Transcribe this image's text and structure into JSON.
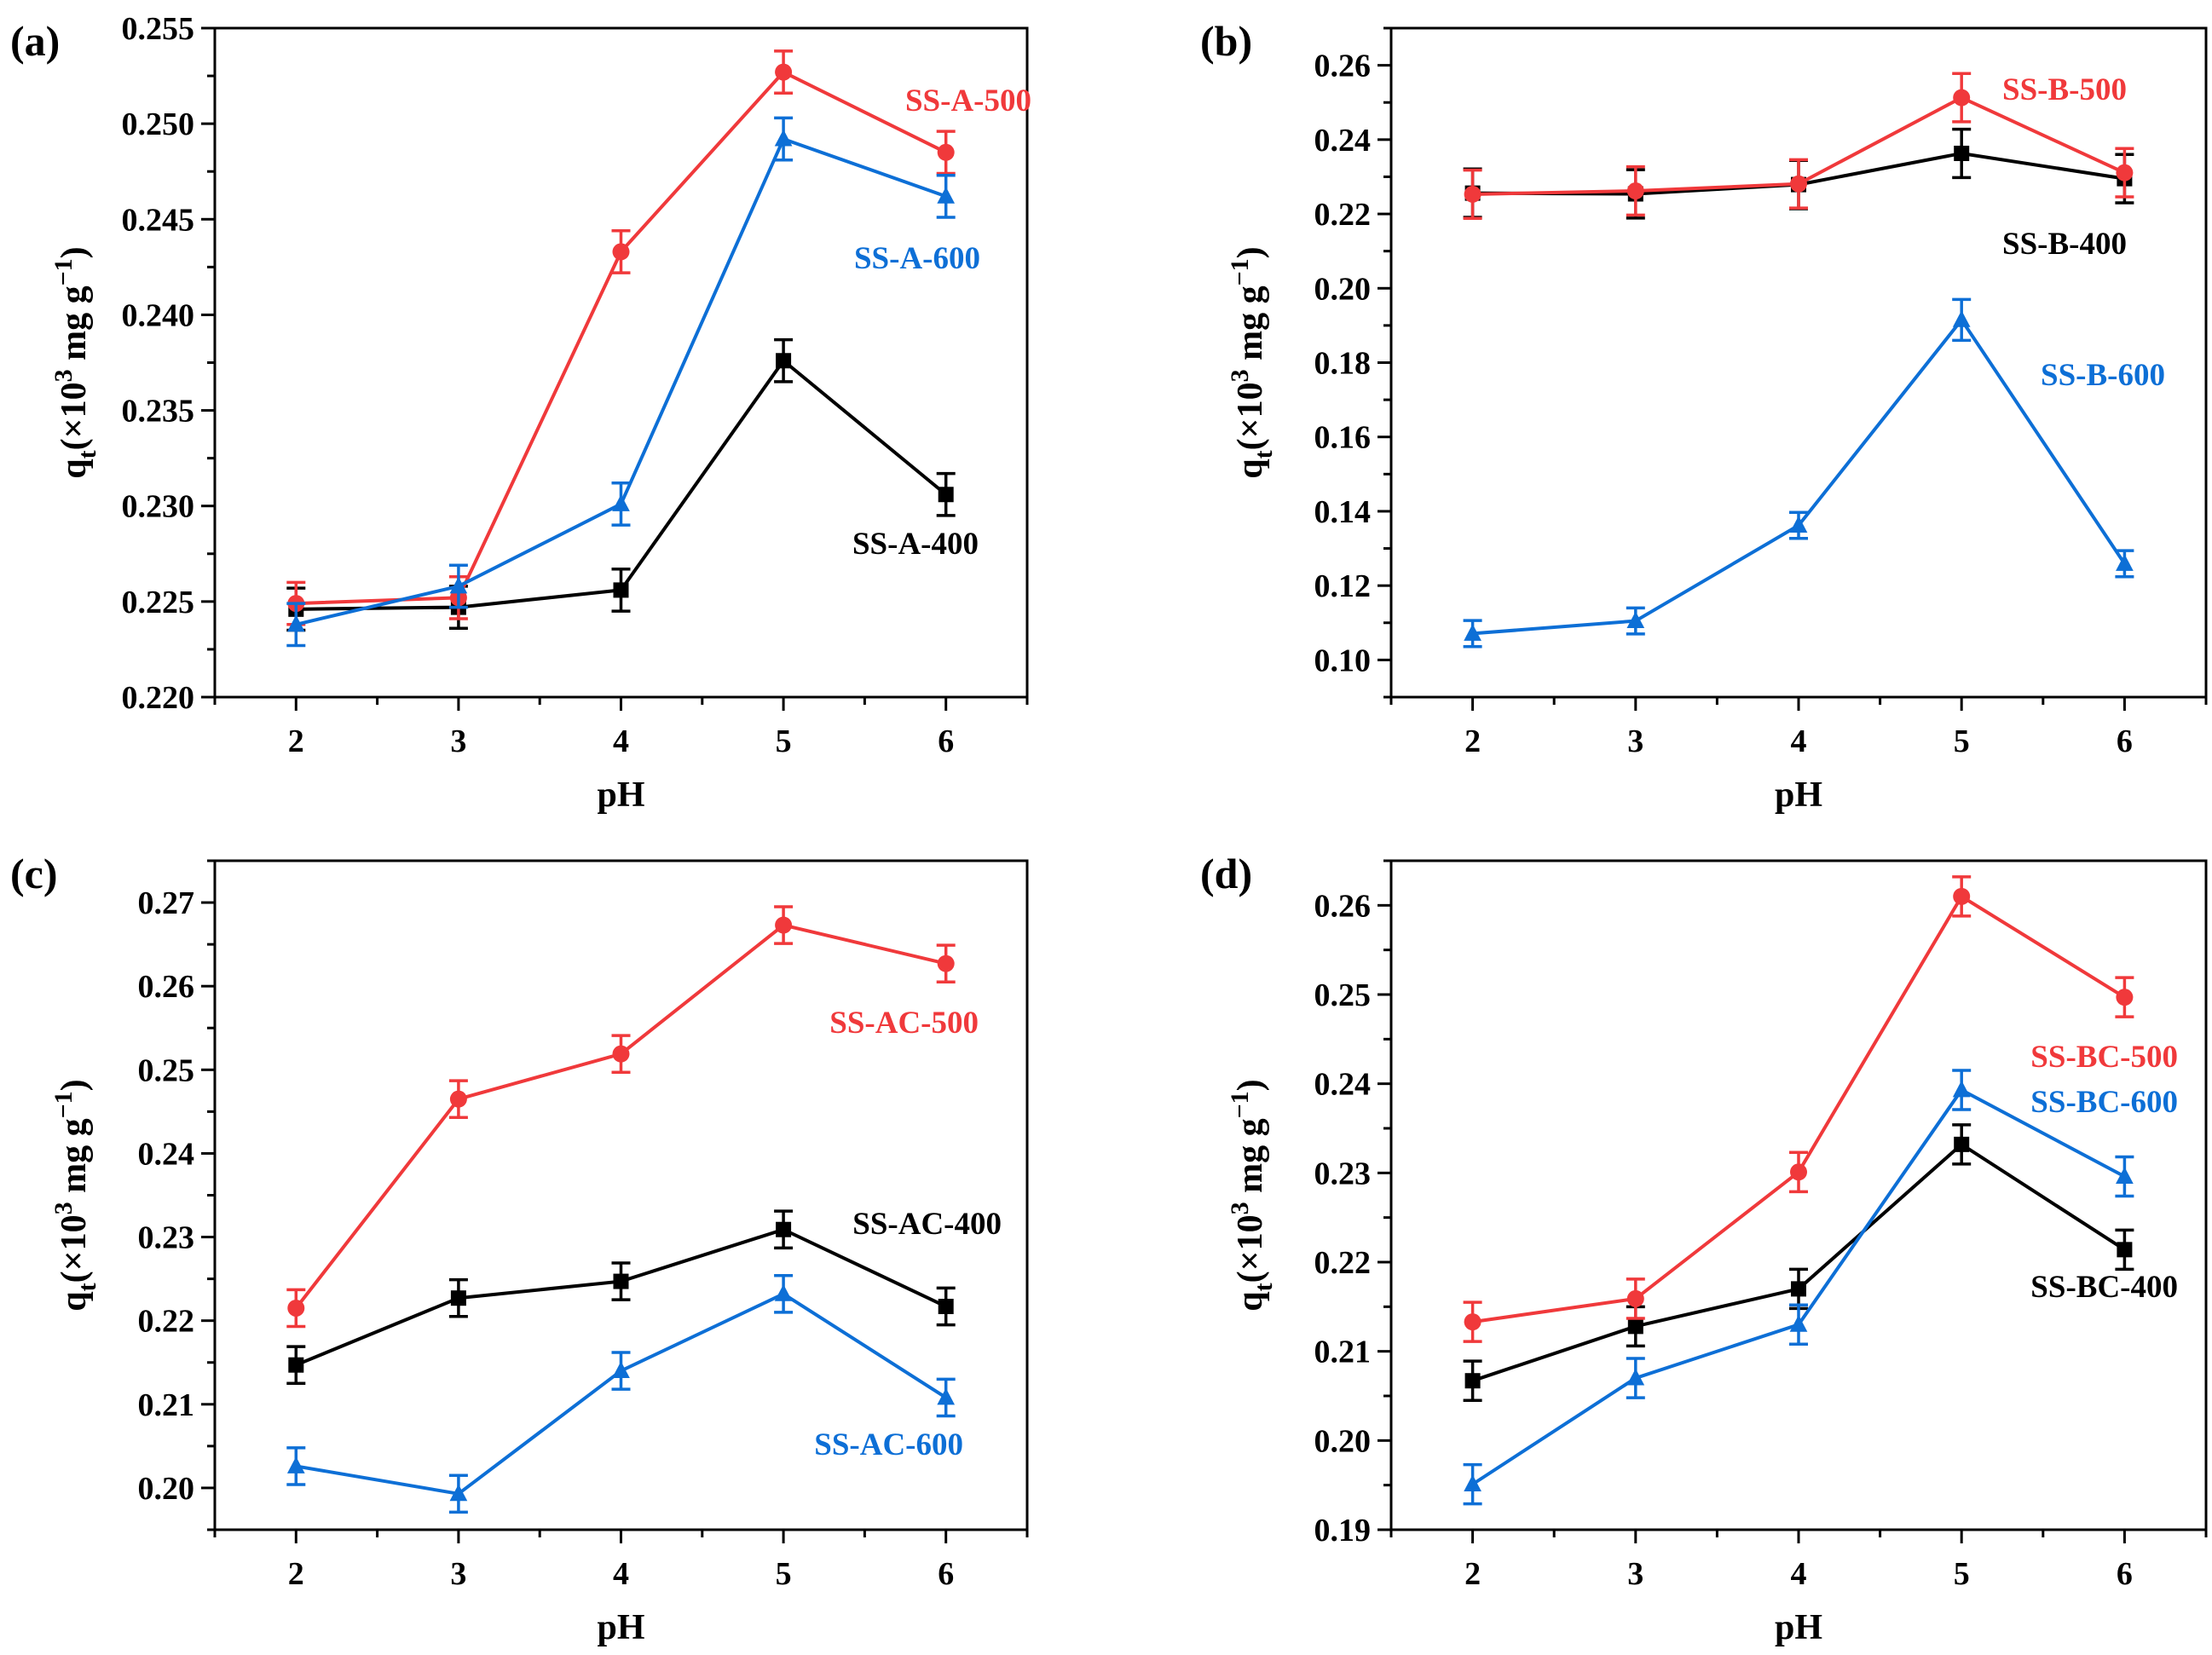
{
  "figure": {
    "panels": [
      {
        "label": "(a)"
      },
      {
        "label": "(b)"
      },
      {
        "label": "(c)"
      },
      {
        "label": "(d)"
      }
    ]
  },
  "chart_data": [
    {
      "type": "line",
      "panel": "(a)",
      "xlabel": "pH",
      "ylabel": "q_t(×10^3 mg g^-1)",
      "x": [
        2,
        3,
        4,
        5,
        6
      ],
      "xticks": [
        "2",
        "3",
        "4",
        "5",
        "6"
      ],
      "xlim": [
        1.5,
        6.5
      ],
      "ylim": [
        0.22,
        0.255
      ],
      "yticks": [
        "0.220",
        "0.225",
        "0.230",
        "0.235",
        "0.240",
        "0.245",
        "0.250",
        "0.255"
      ],
      "series": [
        {
          "name": "SS-A-400",
          "color": "#000000",
          "marker": "square",
          "values": [
            0.2246,
            0.2247,
            0.2256,
            0.2376,
            0.2306
          ],
          "error": [
            0.0011,
            0.0011,
            0.0011,
            0.0011,
            0.0011
          ]
        },
        {
          "name": "SS-A-500",
          "color": "#f0393b",
          "marker": "circle",
          "values": [
            0.2249,
            0.2252,
            0.2433,
            0.2527,
            0.2485
          ],
          "error": [
            0.0011,
            0.0011,
            0.0011,
            0.0011,
            0.0011
          ]
        },
        {
          "name": "SS-A-600",
          "color": "#0d6fd6",
          "marker": "triangle",
          "values": [
            0.2238,
            0.2258,
            0.2301,
            0.2492,
            0.2462
          ],
          "error": [
            0.0011,
            0.0011,
            0.0011,
            0.0011,
            0.0011
          ]
        }
      ]
    },
    {
      "type": "line",
      "panel": "(b)",
      "xlabel": "pH",
      "ylabel": "q_t(×10^3 mg g^-1)",
      "x": [
        2,
        3,
        4,
        5,
        6
      ],
      "xticks": [
        "2",
        "3",
        "4",
        "5",
        "6"
      ],
      "xlim": [
        1.5,
        6.5
      ],
      "ylim": [
        0.09,
        0.27
      ],
      "yticks": [
        "0.10",
        "0.12",
        "0.14",
        "0.16",
        "0.18",
        "0.20",
        "0.22",
        "0.24",
        "0.26"
      ],
      "series": [
        {
          "name": "SS-B-400",
          "color": "#000000",
          "marker": "square",
          "values": [
            0.2256,
            0.2254,
            0.2279,
            0.2363,
            0.2295
          ],
          "error": [
            0.0065,
            0.0065,
            0.0065,
            0.0065,
            0.0065
          ]
        },
        {
          "name": "SS-B-500",
          "color": "#f0393b",
          "marker": "circle",
          "values": [
            0.2253,
            0.2262,
            0.2281,
            0.2513,
            0.2311
          ],
          "error": [
            0.0065,
            0.0065,
            0.0065,
            0.0065,
            0.0065
          ]
        },
        {
          "name": "SS-B-600",
          "color": "#0d6fd6",
          "marker": "triangle",
          "values": [
            0.1071,
            0.1105,
            0.1362,
            0.1915,
            0.1259
          ],
          "error": [
            0.0035,
            0.0035,
            0.0035,
            0.0055,
            0.0035
          ]
        }
      ]
    },
    {
      "type": "line",
      "panel": "(c)",
      "xlabel": "pH",
      "ylabel": "q_t(×10^3 mg g^-1)",
      "x": [
        2,
        3,
        4,
        5,
        6
      ],
      "xticks": [
        "2",
        "3",
        "4",
        "5",
        "6"
      ],
      "xlim": [
        1.5,
        6.5
      ],
      "ylim": [
        0.195,
        0.275
      ],
      "yticks": [
        "0.20",
        "0.21",
        "0.22",
        "0.23",
        "0.24",
        "0.25",
        "0.26",
        "0.27"
      ],
      "series": [
        {
          "name": "SS-AC-400",
          "color": "#000000",
          "marker": "square",
          "values": [
            0.2147,
            0.2227,
            0.2247,
            0.2309,
            0.2217
          ],
          "error": [
            0.0022,
            0.0022,
            0.0022,
            0.0022,
            0.0022
          ]
        },
        {
          "name": "SS-AC-500",
          "color": "#f0393b",
          "marker": "circle",
          "values": [
            0.2215,
            0.2465,
            0.2519,
            0.2673,
            0.2627
          ],
          "error": [
            0.0022,
            0.0022,
            0.0022,
            0.0022,
            0.0022
          ]
        },
        {
          "name": "SS-AC-600",
          "color": "#0d6fd6",
          "marker": "triangle",
          "values": [
            0.2026,
            0.1993,
            0.214,
            0.2232,
            0.2108
          ],
          "error": [
            0.0022,
            0.0022,
            0.0022,
            0.0022,
            0.0022
          ]
        }
      ]
    },
    {
      "type": "line",
      "panel": "(d)",
      "xlabel": "pH",
      "ylabel": "q_t(×10^3 mg g^-1)",
      "x": [
        2,
        3,
        4,
        5,
        6
      ],
      "xticks": [
        "2",
        "3",
        "4",
        "5",
        "6"
      ],
      "xlim": [
        1.5,
        6.5
      ],
      "ylim": [
        0.19,
        0.265
      ],
      "yticks": [
        "0.19",
        "0.20",
        "0.21",
        "0.22",
        "0.23",
        "0.24",
        "0.25",
        "0.26"
      ],
      "series": [
        {
          "name": "SS-BC-400",
          "color": "#000000",
          "marker": "square",
          "values": [
            0.2067,
            0.2128,
            0.217,
            0.2332,
            0.2214
          ],
          "error": [
            0.0022,
            0.0022,
            0.0022,
            0.0022,
            0.0022
          ]
        },
        {
          "name": "SS-BC-500",
          "color": "#f0393b",
          "marker": "circle",
          "values": [
            0.2133,
            0.2159,
            0.2301,
            0.261,
            0.2497
          ],
          "error": [
            0.0022,
            0.0022,
            0.0022,
            0.0022,
            0.0022
          ]
        },
        {
          "name": "SS-BC-600",
          "color": "#0d6fd6",
          "marker": "triangle",
          "values": [
            0.1951,
            0.207,
            0.213,
            0.2393,
            0.2296
          ],
          "error": [
            0.0022,
            0.0022,
            0.0022,
            0.0022,
            0.0022
          ]
        }
      ]
    }
  ]
}
